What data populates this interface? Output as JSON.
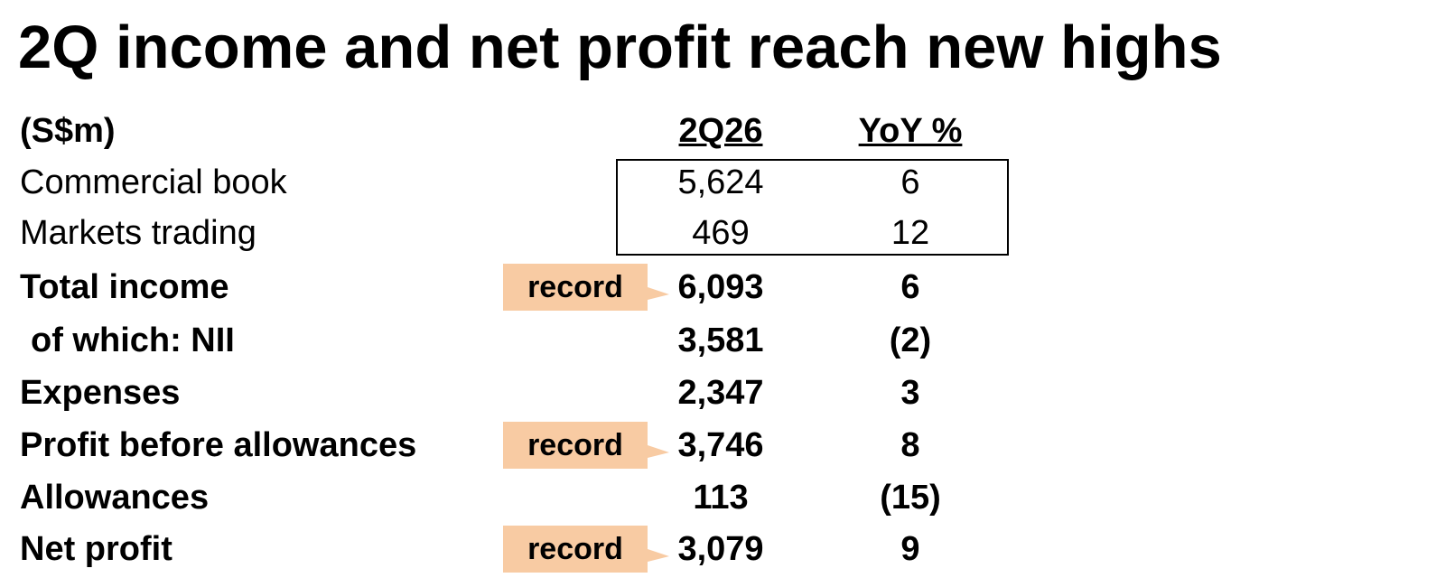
{
  "title": "2Q income and net profit reach new highs",
  "table": {
    "unit": "(S$m)",
    "columns": [
      "2Q26",
      "YoY %"
    ],
    "rows": [
      {
        "label": "Commercial book",
        "value": "5,624",
        "yoy": "6"
      },
      {
        "label": "Markets trading",
        "value": "469",
        "yoy": "12"
      },
      {
        "label": "Total income",
        "value": "6,093",
        "yoy": "6",
        "tag": "record"
      },
      {
        "label": "of which: NII",
        "value": "3,581",
        "yoy": "(2)"
      },
      {
        "label": "Expenses",
        "value": "2,347",
        "yoy": "3"
      },
      {
        "label": "Profit before allowances",
        "value": "3,746",
        "yoy": "8",
        "tag": "record"
      },
      {
        "label": "Allowances",
        "value": "113",
        "yoy": "(15)"
      },
      {
        "label": "Net profit",
        "value": "3,079",
        "yoy": "9",
        "tag": "record"
      }
    ]
  }
}
